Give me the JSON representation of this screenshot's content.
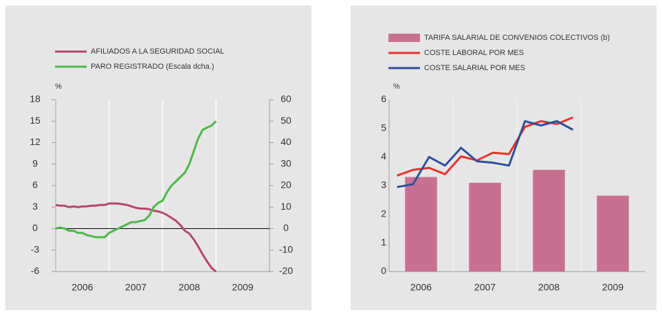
{
  "chart_data": [
    {
      "type": "line",
      "y_unit": "%",
      "xlim": [
        2006,
        2010
      ],
      "xticks": [
        2006,
        2007,
        2008,
        2009
      ],
      "ylim": [
        -6,
        18
      ],
      "yticks": [
        -6,
        -3,
        0,
        3,
        6,
        9,
        12,
        15,
        18
      ],
      "y2lim": [
        -20,
        60
      ],
      "y2ticks": [
        -20,
        -10,
        0,
        10,
        20,
        30,
        40,
        50,
        60
      ],
      "x": [
        2006,
        2006.083,
        2006.167,
        2006.25,
        2006.333,
        2006.417,
        2006.5,
        2006.583,
        2006.667,
        2006.75,
        2006.833,
        2006.917,
        2007,
        2007.083,
        2007.167,
        2007.25,
        2007.333,
        2007.417,
        2007.5,
        2007.583,
        2007.667,
        2007.75,
        2007.833,
        2007.917,
        2008,
        2008.083,
        2008.167,
        2008.25,
        2008.333,
        2008.417,
        2008.5,
        2008.583,
        2008.667,
        2008.75,
        2008.833,
        2008.917,
        2009
      ],
      "series": [
        {
          "name": "AFILIADOS A LA SEGURIDAD SOCIAL",
          "color": "#b5456b",
          "values": [
            3.3,
            3.2,
            3.2,
            3.0,
            3.1,
            3.0,
            3.1,
            3.1,
            3.2,
            3.2,
            3.3,
            3.3,
            3.5,
            3.5,
            3.5,
            3.4,
            3.3,
            3.1,
            2.9,
            2.8,
            2.8,
            2.7,
            2.5,
            2.4,
            2.2,
            1.9,
            1.5,
            1.1,
            0.5,
            -0.3,
            -0.7,
            -1.5,
            -2.5,
            -3.6,
            -4.6,
            -5.5,
            -6
          ]
        },
        {
          "name": "PARO REGISTRADO (Escala dcha.)",
          "color": "#4db848",
          "axis": "y2",
          "values": [
            0,
            0.5,
            0,
            -1,
            -1,
            -2,
            -2,
            -3,
            -3.5,
            -4,
            -4,
            -4,
            -2,
            -1,
            0,
            1,
            2,
            3,
            3,
            3.5,
            4,
            6,
            10,
            12,
            13,
            17,
            20,
            22,
            24,
            26,
            30,
            36,
            42,
            46,
            47,
            48,
            50
          ]
        }
      ]
    },
    {
      "type": "bar",
      "y_unit": "%",
      "xlim": [
        2006,
        2010
      ],
      "xticks": [
        2006,
        2007,
        2008,
        2009
      ],
      "ylim": [
        0,
        6
      ],
      "yticks": [
        0,
        1,
        2,
        3,
        4,
        5,
        6
      ],
      "categories": [
        "2006",
        "2007",
        "2008",
        "2009"
      ],
      "series": [
        {
          "name": "TARIFA SALARIAL DE CONVENIOS COLECTIVOS (b)",
          "color": "#c87090",
          "type": "bar",
          "values": [
            3.3,
            3.1,
            3.55,
            2.65
          ]
        },
        {
          "name": "COSTE LABORAL POR MES",
          "color": "#e8312a",
          "type": "line",
          "x": [
            2006.125,
            2006.375,
            2006.625,
            2006.875,
            2007.125,
            2007.375,
            2007.625,
            2007.875,
            2008.125,
            2008.375,
            2008.625,
            2008.875
          ],
          "values": [
            3.35,
            3.55,
            3.62,
            3.4,
            4.02,
            3.88,
            4.15,
            4.1,
            5.05,
            5.25,
            5.15,
            5.38
          ]
        },
        {
          "name": "COSTE SALARIAL POR MES",
          "color": "#2e4f9b",
          "type": "line",
          "x": [
            2006.125,
            2006.375,
            2006.625,
            2006.875,
            2007.125,
            2007.375,
            2007.625,
            2007.875,
            2008.125,
            2008.375,
            2008.625,
            2008.875
          ],
          "values": [
            2.95,
            3.05,
            4.0,
            3.7,
            4.32,
            3.85,
            3.8,
            3.7,
            5.25,
            5.1,
            5.25,
            4.95
          ]
        }
      ]
    }
  ]
}
